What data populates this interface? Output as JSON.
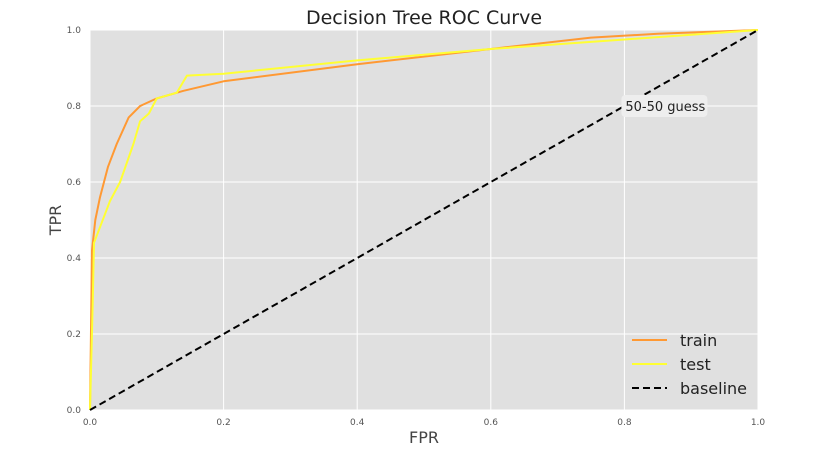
{
  "chart_data": {
    "type": "line",
    "title": "Decision Tree ROC Curve",
    "xlabel": "FPR",
    "ylabel": "TPR",
    "xlim": [
      0,
      1
    ],
    "ylim": [
      0,
      1
    ],
    "xticks": [
      "0.0",
      "0.2",
      "0.4",
      "0.6",
      "0.8",
      "1.0"
    ],
    "yticks": [
      "0.0",
      "0.2",
      "0.4",
      "0.6",
      "0.8",
      "1.0"
    ],
    "grid": true,
    "background": "#e0e0e0",
    "legend_position": "bottom-right",
    "series": [
      {
        "name": "train",
        "color": "#ff9933",
        "style": "solid",
        "x": [
          0,
          0.003,
          0.008,
          0.015,
          0.027,
          0.04,
          0.058,
          0.075,
          0.1,
          0.14,
          0.2,
          0.4,
          0.6,
          0.75,
          0.85,
          1.0
        ],
        "y": [
          0,
          0.42,
          0.5,
          0.56,
          0.64,
          0.7,
          0.77,
          0.8,
          0.82,
          0.84,
          0.865,
          0.91,
          0.95,
          0.98,
          0.99,
          1.0
        ]
      },
      {
        "name": "test",
        "color": "#ffff33",
        "style": "solid",
        "x": [
          0,
          0.004,
          0.006,
          0.03,
          0.045,
          0.065,
          0.075,
          0.088,
          0.1,
          0.13,
          0.145,
          0.2,
          0.4,
          0.6,
          0.8,
          1.0
        ],
        "y": [
          0,
          0.28,
          0.44,
          0.55,
          0.6,
          0.7,
          0.76,
          0.78,
          0.82,
          0.835,
          0.88,
          0.885,
          0.92,
          0.95,
          0.975,
          1.0
        ]
      },
      {
        "name": "baseline",
        "color": "#000000",
        "style": "dashed",
        "x": [
          0,
          1
        ],
        "y": [
          0,
          1
        ]
      }
    ],
    "annotations": [
      {
        "text": "50-50 guess",
        "x": 0.8,
        "y": 0.8
      }
    ]
  }
}
